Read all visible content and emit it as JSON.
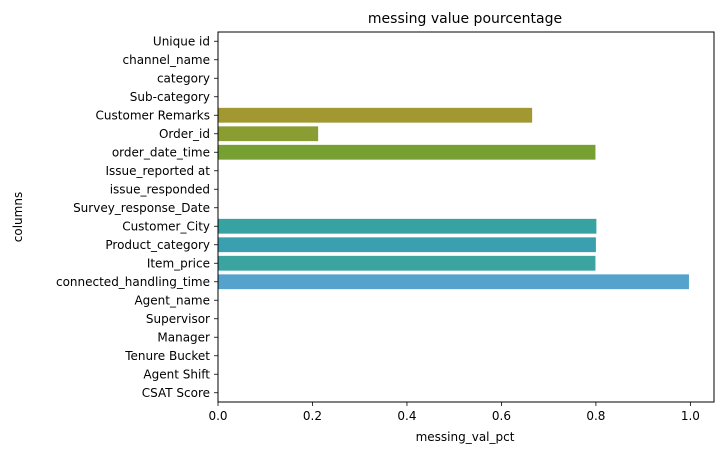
{
  "chart_data": {
    "type": "bar",
    "orientation": "horizontal",
    "title": "messing value pourcentage",
    "xlabel": "messing_val_pct",
    "ylabel": "columns",
    "xlim": [
      0,
      1.05
    ],
    "xticks": [
      0.0,
      0.2,
      0.4,
      0.6,
      0.8,
      1.0
    ],
    "xtick_labels": [
      "0.0",
      "0.2",
      "0.4",
      "0.6",
      "0.8",
      "1.0"
    ],
    "grid": false,
    "categories": [
      "Unique id",
      "channel_name",
      "category",
      "Sub-category",
      "Customer Remarks",
      "Order_id",
      "order_date_time",
      "Issue_reported at",
      "issue_responded",
      "Survey_response_Date",
      "Customer_City",
      "Product_category",
      "Item_price",
      "connected_handling_time",
      "Agent_name",
      "Supervisor",
      "Manager",
      "Tenure Bucket",
      "Agent Shift",
      "CSAT Score"
    ],
    "values": [
      0,
      0,
      0,
      0,
      0.665,
      0.212,
      0.799,
      0,
      0,
      0,
      0.801,
      0.8,
      0.799,
      0.997,
      0,
      0,
      0,
      0,
      0,
      0
    ],
    "colors": [
      "#f77189",
      "#f7754f",
      "#dc8932",
      "#c39532",
      "#a19832",
      "#8a9d32",
      "#76a032",
      "#32a24e",
      "#34a27f",
      "#35a294",
      "#36a2a2",
      "#3aa0b0",
      "#3ba3a0",
      "#55a3cd",
      "#7a8fe0",
      "#9b8ae8",
      "#c28aeb",
      "#e47ad0",
      "#f562b8",
      "#f66fa0"
    ]
  }
}
